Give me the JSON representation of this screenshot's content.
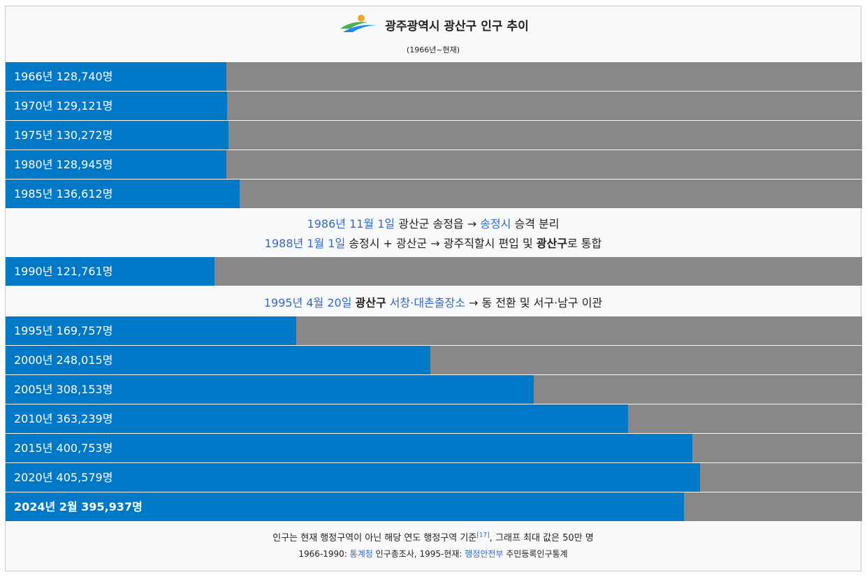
{
  "header": {
    "title": "광주광역시 광산구 인구 추이",
    "subtitle": "(1966년~현재)",
    "logo_icon": "gwangsan-gu-logo-icon"
  },
  "colors": {
    "bar": "#0078c8",
    "track": "#888888"
  },
  "chart_data": {
    "type": "bar",
    "orientation": "horizontal",
    "xlim": [
      0,
      500000
    ],
    "categories": [
      "1966년",
      "1970년",
      "1975년",
      "1980년",
      "1985년",
      "1990년",
      "1995년",
      "2000년",
      "2005년",
      "2010년",
      "2015년",
      "2020년",
      "2024년 2월"
    ],
    "values": [
      128740,
      129121,
      130272,
      128945,
      136612,
      121761,
      169757,
      248015,
      308153,
      363239,
      400753,
      405579,
      395937
    ],
    "labels": [
      "1966년 128,740명",
      "1970년 129,121명",
      "1975년 130,272명",
      "1980년 128,945명",
      "1985년 136,612명",
      "1990년 121,761명",
      "1995년 169,757명",
      "2000년 248,015명",
      "2005년 308,153명",
      "2010년 363,239명",
      "2015년 400,753명",
      "2020년 405,579명",
      "2024년 2월 395,937명"
    ]
  },
  "notes": {
    "n1": {
      "date": "1986년 11월 1일",
      "a": " 광산군 송정읍 → ",
      "link": "송정시",
      "b": " 승격 분리"
    },
    "n2": {
      "date": "1988년 1월 1일",
      "a": " 송정시 + 광산군 → 광주직할시 편입 및 ",
      "bold": "광산구",
      "b": "로 통합"
    },
    "n3": {
      "date": "1995년 4월 20일",
      "bold": "광산구",
      "link": "서창·대촌출장소",
      "b": " → 동 전환 및 서구·남구 이관"
    }
  },
  "footer": {
    "line1_a": "인구는 현재 행정구역이 아닌 해당 연도 행정구역 기준",
    "ref": "[17]",
    "line1_b": ", 그래프 최대 값은 50만 명",
    "line2_a": "1966-1990: ",
    "link1": "통계청",
    "line2_b": " 인구총조사, 1995-현재: ",
    "link2": "행정안전부",
    "line2_c": " 주민등록인구통계"
  }
}
